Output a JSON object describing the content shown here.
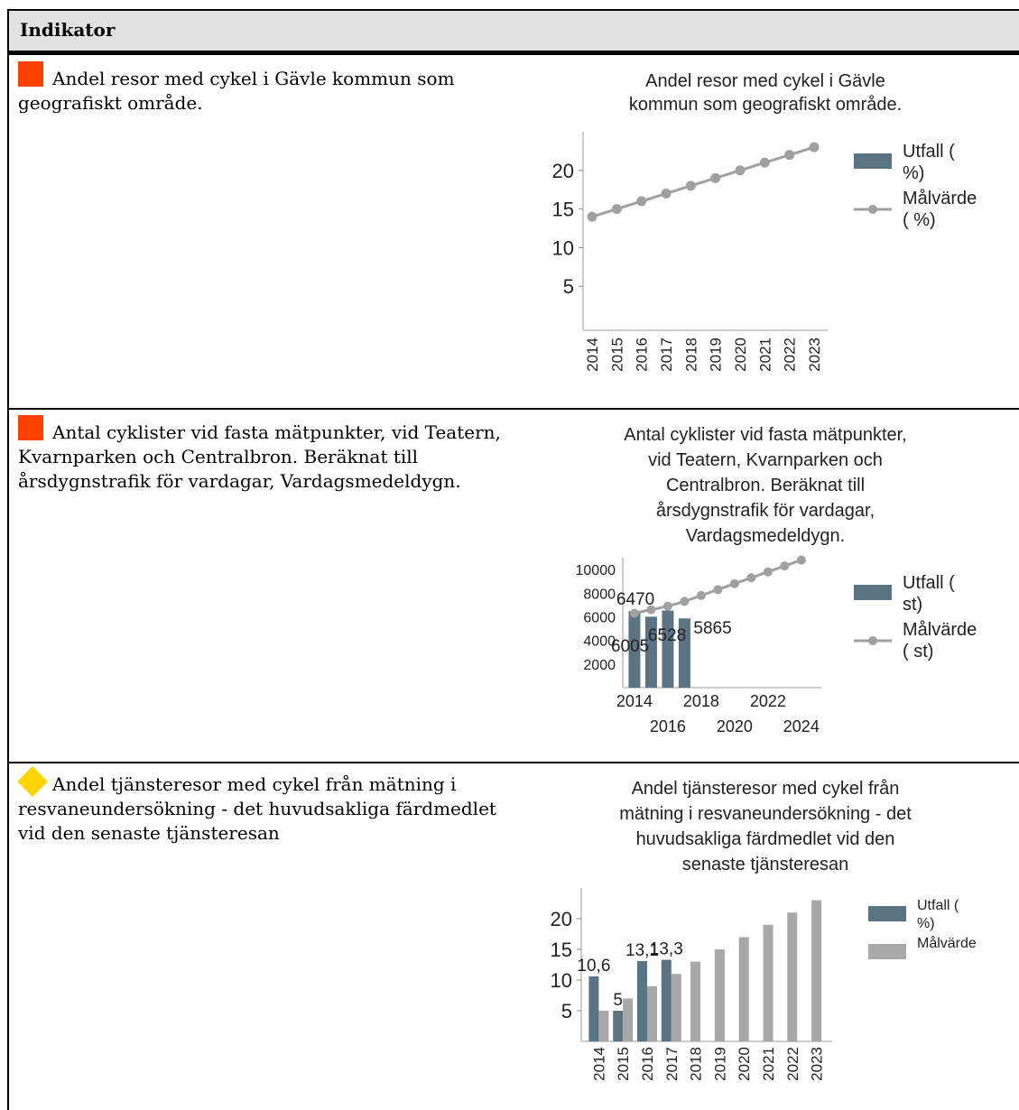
{
  "header": {
    "title": "Indikator"
  },
  "rows": [
    {
      "marker": "red-square",
      "marker_color": "#ff4000",
      "text": "Andel resor med cykel i Gävle kommun som geografiskt område."
    },
    {
      "marker": "red-square",
      "marker_color": "#ff4000",
      "text": "Antal cyklister vid fasta mätpunkter, vid Teatern, Kvarnparken och Centralbron. Beräknat till årsdygnstrafik för vardagar, Vardagsmedeldygn."
    },
    {
      "marker": "yellow-diamond",
      "marker_color": "#ffd400",
      "text": "Andel tjänsteresor med cykel från mätning i resvaneundersökning - det huvudsakliga färdmedlet vid den senaste tjänsteresan"
    }
  ],
  "colors": {
    "utfall": "#5b7383",
    "malvarde_line": "#a0a0a0",
    "malvarde_bar": "#a8a8a8"
  },
  "chart_data": [
    {
      "type": "line",
      "title_lines": [
        "Andel resor med cykel i Gävle",
        "kommun som geografiskt område."
      ],
      "categories": [
        "2014",
        "2015",
        "2016",
        "2017",
        "2018",
        "2019",
        "2020",
        "2021",
        "2022",
        "2023"
      ],
      "yticks": [
        "5",
        "10",
        "15",
        "20"
      ],
      "ylim": [
        0,
        25
      ],
      "legend": [
        {
          "lines": [
            "Utfall (",
            "%)"
          ]
        },
        {
          "lines": [
            "Målvärde",
            "( %)"
          ]
        }
      ],
      "series": [
        {
          "name": "Målvärde ( %)",
          "kind": "line",
          "values": [
            14,
            15,
            16,
            17,
            18,
            19,
            20,
            21,
            22,
            23
          ]
        }
      ]
    },
    {
      "type": "bar",
      "title_lines": [
        "Antal cyklister vid fasta mätpunkter,",
        "vid Teatern, Kvarnparken och",
        "Centralbron. Beräknat till",
        "årsdygnstrafik för vardagar,",
        "Vardagsmedeldygn."
      ],
      "x_range": [
        2013.3,
        2025.2
      ],
      "xticks_top": [
        "2014",
        "2018",
        "2022"
      ],
      "xticks_bottom": [
        "2016",
        "2020",
        "2024"
      ],
      "yticks": [
        "2000",
        "4000",
        "6000",
        "8000",
        "10000"
      ],
      "ylim": [
        0,
        11000
      ],
      "legend": [
        {
          "lines": [
            "Utfall (",
            "st)"
          ]
        },
        {
          "lines": [
            "Målvärde",
            "( st)"
          ]
        }
      ],
      "series": [
        {
          "name": "Utfall ( st)",
          "kind": "bar",
          "x": [
            2014,
            2015,
            2016,
            2017
          ],
          "values": [
            6470,
            6005,
            6528,
            5865
          ],
          "labels": [
            "6470",
            "6005",
            "6528",
            "5865"
          ]
        },
        {
          "name": "Målvärde ( st)",
          "kind": "line",
          "x": [
            2014,
            2015,
            2016,
            2017,
            2018,
            2019,
            2020,
            2021,
            2022,
            2023,
            2024
          ],
          "values": [
            6300,
            6600,
            6900,
            7300,
            7800,
            8300,
            8800,
            9300,
            9800,
            10300,
            10800
          ]
        }
      ]
    },
    {
      "type": "bar",
      "title_lines": [
        "Andel tjänsteresor med cykel från",
        "mätning i resvaneundersökning - det",
        "huvudsakliga färdmedlet vid den",
        "senaste tjänsteresan"
      ],
      "categories": [
        "2014",
        "2015",
        "2016",
        "2017",
        "2018",
        "2019",
        "2020",
        "2021",
        "2022",
        "2023"
      ],
      "yticks": [
        "5",
        "10",
        "15",
        "20"
      ],
      "ylim": [
        0,
        25
      ],
      "legend": [
        {
          "lines": [
            "Utfall (",
            "%)"
          ]
        },
        {
          "lines": [
            "Målvärde"
          ]
        }
      ],
      "series": [
        {
          "name": "Utfall ( %)",
          "kind": "bar",
          "values": [
            10.6,
            5,
            13.1,
            13.3,
            null,
            null,
            null,
            null,
            null,
            null
          ],
          "labels": [
            "10,6",
            "5",
            "13,1",
            "13,3",
            "",
            "",
            "",
            "",
            "",
            ""
          ]
        },
        {
          "name": "Målvärde",
          "kind": "bar",
          "values": [
            5,
            7,
            9,
            11,
            13,
            15,
            17,
            19,
            21,
            23
          ]
        }
      ]
    }
  ]
}
